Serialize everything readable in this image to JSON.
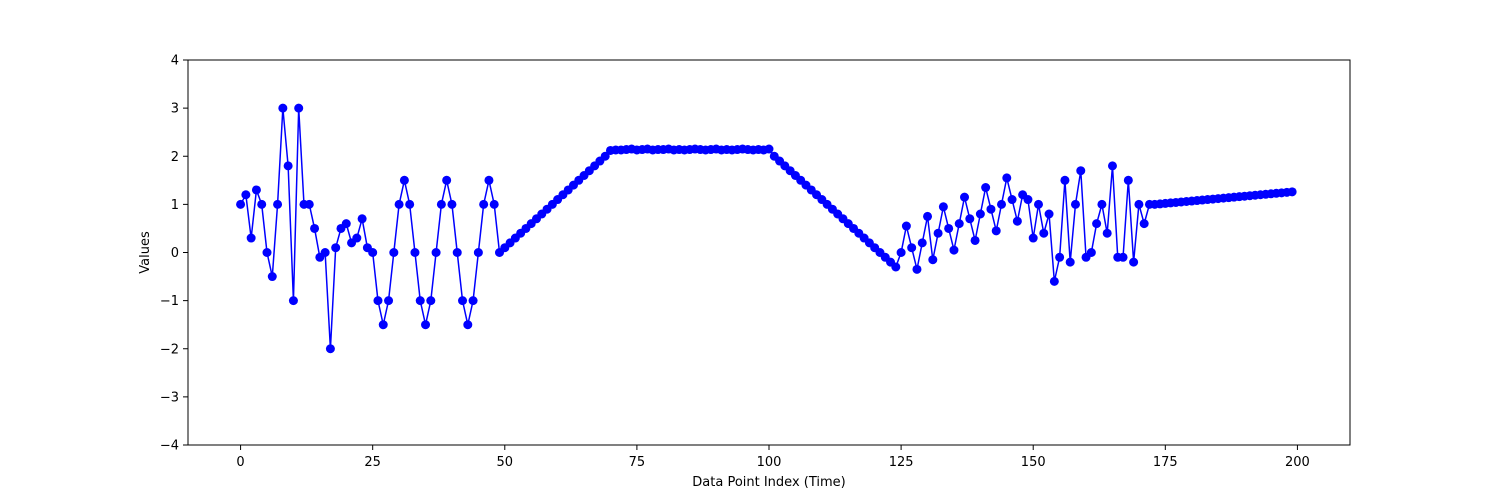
{
  "chart_data": {
    "type": "line",
    "title": "",
    "xlabel": "Data Point Index (Time)",
    "ylabel": "Values",
    "xlim": [
      -9.95,
      209.95
    ],
    "ylim": [
      -4,
      4
    ],
    "xticks": [
      0,
      25,
      50,
      75,
      100,
      125,
      150,
      175,
      200
    ],
    "yticks": [
      -4,
      -3,
      -2,
      -1,
      0,
      1,
      2,
      3,
      4
    ],
    "grid": false,
    "legend": "none",
    "marker": "circle",
    "color": "#0000ff",
    "series": [
      {
        "name": "",
        "x": [
          0,
          1,
          2,
          3,
          4,
          5,
          6,
          7,
          8,
          9,
          10,
          11,
          12,
          13,
          14,
          15,
          16,
          17,
          18,
          19,
          20,
          21,
          22,
          23,
          24,
          25,
          26,
          27,
          28,
          29,
          30,
          31,
          32,
          33,
          34,
          35,
          36,
          37,
          38,
          39,
          40,
          41,
          42,
          43,
          44,
          45,
          46,
          47,
          48,
          49,
          50,
          51,
          52,
          53,
          54,
          55,
          56,
          57,
          58,
          59,
          60,
          61,
          62,
          63,
          64,
          65,
          66,
          67,
          68,
          69,
          70,
          71,
          72,
          73,
          74,
          75,
          76,
          77,
          78,
          79,
          80,
          81,
          82,
          83,
          84,
          85,
          86,
          87,
          88,
          89,
          90,
          91,
          92,
          93,
          94,
          95,
          96,
          97,
          98,
          99,
          100,
          101,
          102,
          103,
          104,
          105,
          106,
          107,
          108,
          109,
          110,
          111,
          112,
          113,
          114,
          115,
          116,
          117,
          118,
          119,
          120,
          121,
          122,
          123,
          124,
          125,
          126,
          127,
          128,
          129,
          130,
          131,
          132,
          133,
          134,
          135,
          136,
          137,
          138,
          139,
          140,
          141,
          142,
          143,
          144,
          145,
          146,
          147,
          148,
          149,
          150,
          151,
          152,
          153,
          154,
          155,
          156,
          157,
          158,
          159,
          160,
          161,
          162,
          163,
          164,
          165,
          166,
          167,
          168,
          169,
          170,
          171,
          172,
          173,
          174,
          175,
          176,
          177,
          178,
          179,
          180,
          181,
          182,
          183,
          184,
          185,
          186,
          187,
          188,
          189,
          190,
          191,
          192,
          193,
          194,
          195,
          196,
          197,
          198,
          199
        ],
        "values": [
          1.0,
          1.2,
          0.3,
          1.3,
          1.0,
          0.0,
          -0.5,
          1.0,
          3.0,
          1.8,
          -1.0,
          3.0,
          1.0,
          1.0,
          0.5,
          -0.1,
          0.0,
          -2.0,
          0.1,
          0.5,
          0.6,
          0.2,
          0.3,
          0.7,
          0.1,
          0.0,
          -1.0,
          -1.5,
          -1.0,
          0.0,
          1.0,
          1.5,
          1.0,
          0.0,
          -1.0,
          -1.5,
          -1.0,
          0.0,
          1.0,
          1.5,
          1.0,
          0.0,
          -1.0,
          -1.5,
          -1.0,
          0.0,
          1.0,
          1.5,
          1.0,
          0.0,
          0.1,
          0.2,
          0.3,
          0.4,
          0.5,
          0.6,
          0.7,
          0.8,
          0.9,
          1.0,
          1.1,
          1.2,
          1.3,
          1.4,
          1.5,
          1.6,
          1.7,
          1.8,
          1.9,
          2.0,
          2.12,
          2.13,
          2.13,
          2.14,
          2.15,
          2.13,
          2.14,
          2.15,
          2.13,
          2.14,
          2.14,
          2.15,
          2.13,
          2.14,
          2.13,
          2.14,
          2.15,
          2.14,
          2.13,
          2.14,
          2.15,
          2.13,
          2.14,
          2.13,
          2.14,
          2.15,
          2.14,
          2.13,
          2.14,
          2.13,
          2.15,
          2.0,
          1.9,
          1.8,
          1.7,
          1.6,
          1.5,
          1.4,
          1.3,
          1.2,
          1.1,
          1.0,
          0.9,
          0.8,
          0.7,
          0.6,
          0.5,
          0.4,
          0.3,
          0.2,
          0.1,
          0.0,
          -0.1,
          -0.2,
          -0.3,
          0.0,
          0.55,
          0.1,
          -0.35,
          0.2,
          0.75,
          -0.15,
          0.4,
          0.95,
          0.5,
          0.05,
          0.6,
          1.15,
          0.7,
          0.25,
          0.8,
          1.35,
          0.9,
          0.45,
          1.0,
          1.55,
          1.1,
          0.65,
          1.2,
          1.1,
          0.3,
          1.0,
          0.4,
          0.8,
          -0.6,
          -0.1,
          1.5,
          -0.2,
          1.0,
          1.7,
          -0.1,
          0.0,
          0.6,
          1.0,
          0.4,
          1.8,
          -0.1,
          -0.1,
          1.5,
          -0.2,
          1.0,
          0.6,
          1.0,
          1.0,
          1.01,
          1.02,
          1.03,
          1.04,
          1.05,
          1.06,
          1.07,
          1.08,
          1.09,
          1.1,
          1.11,
          1.12,
          1.13,
          1.14,
          1.15,
          1.16,
          1.17,
          1.18,
          1.19,
          1.2,
          1.21,
          1.22,
          1.23,
          1.24,
          1.25,
          1.26
        ]
      }
    ]
  }
}
